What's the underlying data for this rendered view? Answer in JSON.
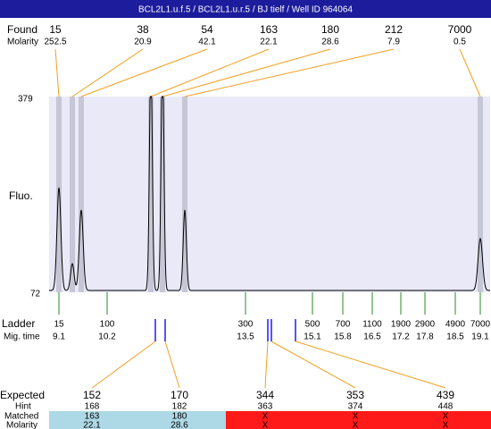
{
  "header": {
    "title": "BCL2L1.u.f.5 / BCL2L1.u.r.5 / BJ tielf / Well ID 964064"
  },
  "found": {
    "label": "Found",
    "sublabel": "Molarity",
    "peaks": [
      {
        "size": "15",
        "molarity": "252.5"
      },
      {
        "size": "38",
        "molarity": "20.9"
      },
      {
        "size": "54",
        "molarity": "42.1"
      },
      {
        "size": "163",
        "molarity": "22.1"
      },
      {
        "size": "180",
        "molarity": "28.6"
      },
      {
        "size": "212",
        "molarity": "7.9"
      },
      {
        "size": "7000",
        "molarity": "0.5"
      }
    ]
  },
  "axis": {
    "label": "Fluo.",
    "top": "379",
    "bottom": "72"
  },
  "ladder": {
    "label": "Ladder",
    "sublabel": "Mig. time",
    "bands": [
      {
        "size": "15",
        "time": "9.1"
      },
      {
        "size": "100",
        "time": "10.2"
      },
      {
        "size": "300",
        "time": "13.5"
      },
      {
        "size": "500",
        "time": "15.1"
      },
      {
        "size": "700",
        "time": "15.8"
      },
      {
        "size": "1100",
        "time": "16.5"
      },
      {
        "size": "1900",
        "time": "17.2"
      },
      {
        "size": "2900",
        "time": "17.8"
      },
      {
        "size": "4900",
        "time": "18.5"
      },
      {
        "size": "7000",
        "time": "19.1"
      }
    ]
  },
  "expected": {
    "label": "Expected",
    "hint_label": "Hint",
    "matched_label": "Matched",
    "molarity_label": "Molarity",
    "columns": [
      {
        "expected": "152",
        "hint": "168",
        "matched": "163",
        "molarity": "22.1"
      },
      {
        "expected": "170",
        "hint": "182",
        "matched": "180",
        "molarity": "28.6"
      },
      {
        "expected": "344",
        "hint": "363",
        "matched": "X",
        "molarity": "X"
      },
      {
        "expected": "353",
        "hint": "374",
        "matched": "X",
        "molarity": "X"
      },
      {
        "expected": "439",
        "hint": "448",
        "matched": "X",
        "molarity": "X"
      }
    ]
  }
}
